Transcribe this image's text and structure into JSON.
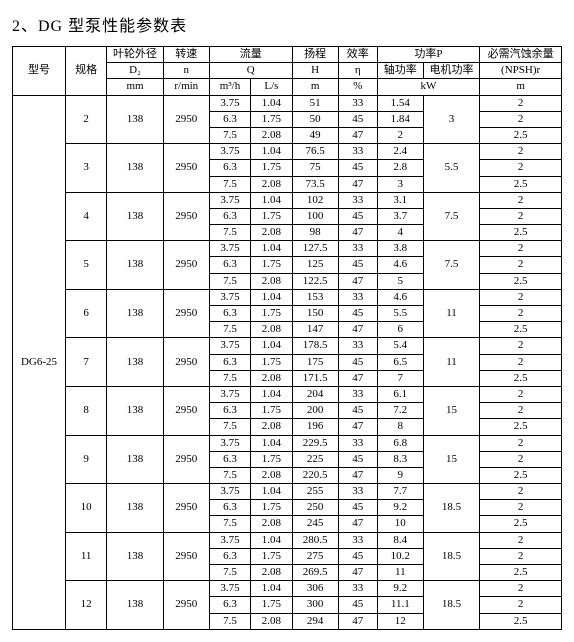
{
  "title": "2、DG 型泵性能参数表",
  "headers": {
    "model": "型号",
    "spec": "规格",
    "d2_top": "叶轮外径",
    "d2_sym": "D₂",
    "d2_unit": "mm",
    "n_top": "转速",
    "n_sym": "n",
    "n_unit": "r/min",
    "q_top": "流量",
    "q_sym": "Q",
    "q_u1": "m³/h",
    "q_u2": "L/s",
    "h_top": "扬程",
    "h_sym": "H",
    "h_unit": "m",
    "eta_top": "效率",
    "eta_sym": "η",
    "eta_unit": "%",
    "p_top": "功率P",
    "p_shaft": "轴功率",
    "p_motor": "电机功率",
    "p_unit": "kW",
    "npsh_top": "必需汽蚀余量",
    "npsh_sym": "(NPSH)r",
    "npsh_unit": "m"
  },
  "model": "DG6-25",
  "d2_val": "138",
  "n_val": "2950",
  "groups": [
    {
      "spec": "2",
      "motor": "3",
      "rows": [
        {
          "q1": "3.75",
          "q2": "1.04",
          "h": "51",
          "eta": "33",
          "ps": "1.54",
          "npsh": "2"
        },
        {
          "q1": "6.3",
          "q2": "1.75",
          "h": "50",
          "eta": "45",
          "ps": "1.84",
          "npsh": "2"
        },
        {
          "q1": "7.5",
          "q2": "2.08",
          "h": "49",
          "eta": "47",
          "ps": "2",
          "npsh": "2.5"
        }
      ]
    },
    {
      "spec": "3",
      "motor": "5.5",
      "rows": [
        {
          "q1": "3.75",
          "q2": "1.04",
          "h": "76.5",
          "eta": "33",
          "ps": "2.4",
          "npsh": "2"
        },
        {
          "q1": "6.3",
          "q2": "1.75",
          "h": "75",
          "eta": "45",
          "ps": "2.8",
          "npsh": "2"
        },
        {
          "q1": "7.5",
          "q2": "2.08",
          "h": "73.5",
          "eta": "47",
          "ps": "3",
          "npsh": "2.5"
        }
      ]
    },
    {
      "spec": "4",
      "motor": "7.5",
      "rows": [
        {
          "q1": "3.75",
          "q2": "1.04",
          "h": "102",
          "eta": "33",
          "ps": "3.1",
          "npsh": "2"
        },
        {
          "q1": "6.3",
          "q2": "1.75",
          "h": "100",
          "eta": "45",
          "ps": "3.7",
          "npsh": "2"
        },
        {
          "q1": "7.5",
          "q2": "2.08",
          "h": "98",
          "eta": "47",
          "ps": "4",
          "npsh": "2.5"
        }
      ]
    },
    {
      "spec": "5",
      "motor": "7.5",
      "rows": [
        {
          "q1": "3.75",
          "q2": "1.04",
          "h": "127.5",
          "eta": "33",
          "ps": "3.8",
          "npsh": "2"
        },
        {
          "q1": "6.3",
          "q2": "1.75",
          "h": "125",
          "eta": "45",
          "ps": "4.6",
          "npsh": "2"
        },
        {
          "q1": "7.5",
          "q2": "2.08",
          "h": "122.5",
          "eta": "47",
          "ps": "5",
          "npsh": "2.5"
        }
      ]
    },
    {
      "spec": "6",
      "motor": "11",
      "rows": [
        {
          "q1": "3.75",
          "q2": "1.04",
          "h": "153",
          "eta": "33",
          "ps": "4.6",
          "npsh": "2"
        },
        {
          "q1": "6.3",
          "q2": "1.75",
          "h": "150",
          "eta": "45",
          "ps": "5.5",
          "npsh": "2"
        },
        {
          "q1": "7.5",
          "q2": "2.08",
          "h": "147",
          "eta": "47",
          "ps": "6",
          "npsh": "2.5"
        }
      ]
    },
    {
      "spec": "7",
      "motor": "11",
      "rows": [
        {
          "q1": "3.75",
          "q2": "1.04",
          "h": "178.5",
          "eta": "33",
          "ps": "5.4",
          "npsh": "2"
        },
        {
          "q1": "6.3",
          "q2": "1.75",
          "h": "175",
          "eta": "45",
          "ps": "6.5",
          "npsh": "2"
        },
        {
          "q1": "7.5",
          "q2": "2.08",
          "h": "171.5",
          "eta": "47",
          "ps": "7",
          "npsh": "2.5"
        }
      ]
    },
    {
      "spec": "8",
      "motor": "15",
      "rows": [
        {
          "q1": "3.75",
          "q2": "1.04",
          "h": "204",
          "eta": "33",
          "ps": "6.1",
          "npsh": "2"
        },
        {
          "q1": "6.3",
          "q2": "1.75",
          "h": "200",
          "eta": "45",
          "ps": "7.2",
          "npsh": "2"
        },
        {
          "q1": "7.5",
          "q2": "2.08",
          "h": "196",
          "eta": "47",
          "ps": "8",
          "npsh": "2.5"
        }
      ]
    },
    {
      "spec": "9",
      "motor": "15",
      "rows": [
        {
          "q1": "3.75",
          "q2": "1.04",
          "h": "229.5",
          "eta": "33",
          "ps": "6.8",
          "npsh": "2"
        },
        {
          "q1": "6.3",
          "q2": "1.75",
          "h": "225",
          "eta": "45",
          "ps": "8.3",
          "npsh": "2"
        },
        {
          "q1": "7.5",
          "q2": "2.08",
          "h": "220.5",
          "eta": "47",
          "ps": "9",
          "npsh": "2.5"
        }
      ]
    },
    {
      "spec": "10",
      "motor": "18.5",
      "rows": [
        {
          "q1": "3.75",
          "q2": "1.04",
          "h": "255",
          "eta": "33",
          "ps": "7.7",
          "npsh": "2"
        },
        {
          "q1": "6.3",
          "q2": "1.75",
          "h": "250",
          "eta": "45",
          "ps": "9.2",
          "npsh": "2"
        },
        {
          "q1": "7.5",
          "q2": "2.08",
          "h": "245",
          "eta": "47",
          "ps": "10",
          "npsh": "2.5"
        }
      ]
    },
    {
      "spec": "11",
      "motor": "18.5",
      "rows": [
        {
          "q1": "3.75",
          "q2": "1.04",
          "h": "280.5",
          "eta": "33",
          "ps": "8.4",
          "npsh": "2"
        },
        {
          "q1": "6.3",
          "q2": "1.75",
          "h": "275",
          "eta": "45",
          "ps": "10.2",
          "npsh": "2"
        },
        {
          "q1": "7.5",
          "q2": "2.08",
          "h": "269.5",
          "eta": "47",
          "ps": "11",
          "npsh": "2.5"
        }
      ]
    },
    {
      "spec": "12",
      "motor": "18.5",
      "rows": [
        {
          "q1": "3.75",
          "q2": "1.04",
          "h": "306",
          "eta": "33",
          "ps": "9.2",
          "npsh": "2"
        },
        {
          "q1": "6.3",
          "q2": "1.75",
          "h": "300",
          "eta": "45",
          "ps": "11.1",
          "npsh": "2"
        },
        {
          "q1": "7.5",
          "q2": "2.08",
          "h": "294",
          "eta": "47",
          "ps": "12",
          "npsh": "2.5"
        }
      ]
    }
  ]
}
